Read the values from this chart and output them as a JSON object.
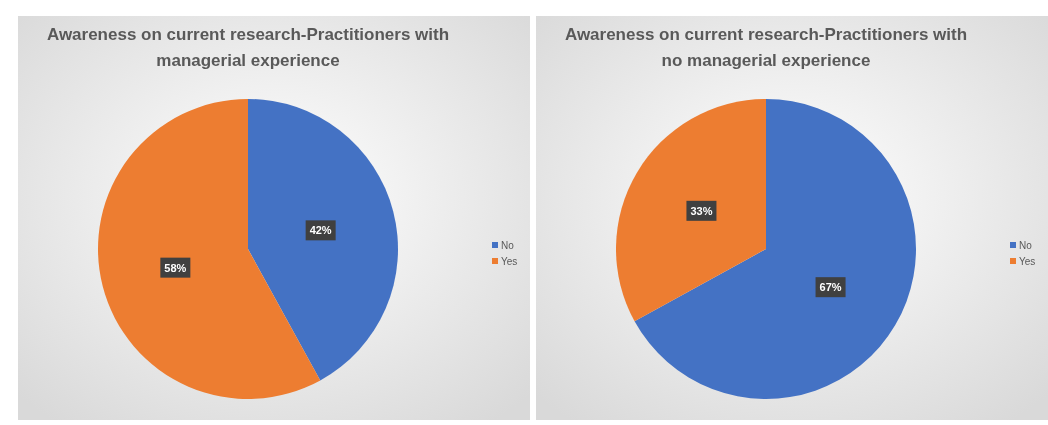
{
  "chart_data": [
    {
      "type": "pie",
      "title": "Awareness on current research-Practitioners with managerial experience",
      "categories": [
        "No",
        "Yes"
      ],
      "values": [
        42,
        58
      ],
      "value_labels": [
        "42%",
        "58%"
      ],
      "colors": [
        "#4472c4",
        "#ed7d31"
      ],
      "legend": "right"
    },
    {
      "type": "pie",
      "title": "Awareness on current research-Practitioners with no managerial experience",
      "categories": [
        "No",
        "Yes"
      ],
      "values": [
        67,
        33
      ],
      "value_labels": [
        "67%",
        "33%"
      ],
      "colors": [
        "#4472c4",
        "#ed7d31"
      ],
      "legend": "right"
    }
  ]
}
